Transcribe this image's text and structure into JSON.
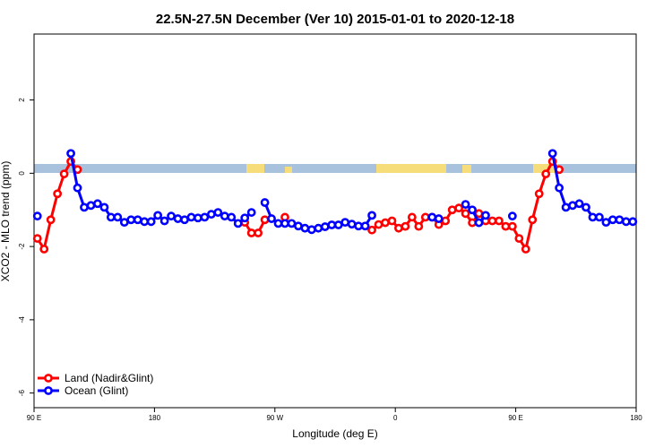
{
  "chart_data": {
    "type": "line",
    "title": "22.5N-27.5N December (Ver 10)   2015-01-01 to 2020-12-18",
    "x_label": "Longitude (deg E)",
    "y_label": "XCO2 - MLO trend (ppm)",
    "xlim": [
      90,
      540
    ],
    "ylim": [
      -6.4,
      3.8
    ],
    "xticks": [
      {
        "value": 90,
        "label": "90 E"
      },
      180,
      {
        "value": 270,
        "label": "90 W"
      },
      {
        "value": 360,
        "label": "0"
      },
      {
        "value": 450,
        "label": "90 E"
      },
      {
        "value": 540,
        "label": "180"
      }
    ],
    "yticks": [
      -6,
      -4,
      -2,
      0,
      2
    ],
    "legend": "bottom-left",
    "x": [
      92.5,
      97.5,
      102.5,
      107.5,
      112.5,
      117.5,
      122.5,
      127.5,
      132.5,
      137.5,
      142.5,
      147.5,
      152.5,
      157.5,
      162.5,
      167.5,
      172.5,
      177.5,
      182.5,
      187.5,
      192.5,
      197.5,
      202.5,
      207.5,
      212.5,
      217.5,
      222.5,
      227.5,
      232.5,
      237.5,
      242.5,
      247.5,
      252.5,
      257.5,
      262.5,
      267.5,
      272.5,
      277.5,
      282.5,
      287.5,
      292.5,
      297.5,
      302.5,
      307.5,
      312.5,
      317.5,
      322.5,
      327.5,
      332.5,
      337.5,
      342.5,
      347.5,
      352.5,
      357.5,
      362.5,
      367.5,
      372.5,
      377.5,
      382.5,
      387.5,
      392.5,
      397.5,
      402.5,
      407.5,
      412.5,
      417.5,
      422.5,
      427.5,
      432.5,
      437.5,
      442.5,
      447.5,
      452.5,
      457.5,
      462.5,
      467.5,
      472.5,
      477.5,
      482.5,
      487.5,
      492.5,
      497.5,
      502.5,
      507.5,
      512.5,
      517.5,
      522.5,
      527.5,
      532.5,
      537.5
    ],
    "series": [
      {
        "name": "Land (Nadir&Glint)",
        "color": "#ff0000",
        "values": [
          -1.78,
          -2.07,
          -1.27,
          -0.56,
          -0.02,
          0.32,
          0.1,
          null,
          null,
          null,
          null,
          null,
          null,
          null,
          null,
          null,
          null,
          null,
          null,
          null,
          null,
          null,
          null,
          null,
          null,
          null,
          null,
          null,
          null,
          null,
          null,
          -1.34,
          -1.63,
          -1.63,
          -1.27,
          null,
          null,
          -1.2,
          null,
          null,
          null,
          null,
          null,
          null,
          null,
          null,
          null,
          null,
          null,
          null,
          -1.55,
          -1.4,
          -1.35,
          -1.3,
          -1.5,
          -1.45,
          -1.2,
          -1.45,
          -1.2,
          -1.2,
          -1.4,
          -1.3,
          -1.0,
          -0.95,
          -1.1,
          -1.35,
          -1.1,
          -1.3,
          -1.3,
          -1.3,
          -1.45,
          -1.45,
          -1.78,
          -2.07,
          -1.27,
          -0.56,
          -0.02,
          0.32,
          0.1,
          null,
          null,
          null,
          null,
          null,
          null,
          null,
          null,
          null,
          null,
          null
        ]
      },
      {
        "name": "Ocean (Glint)",
        "color": "#0000ff",
        "values": [
          -1.17,
          null,
          null,
          null,
          null,
          0.54,
          -0.4,
          -0.93,
          -0.88,
          -0.83,
          -0.93,
          -1.2,
          -1.2,
          -1.34,
          -1.27,
          -1.27,
          -1.32,
          -1.32,
          -1.15,
          -1.3,
          -1.17,
          -1.24,
          -1.27,
          -1.2,
          -1.22,
          -1.2,
          -1.12,
          -1.07,
          -1.17,
          -1.2,
          -1.37,
          -1.22,
          -1.07,
          null,
          -0.8,
          -1.24,
          -1.37,
          -1.37,
          -1.37,
          -1.44,
          -1.5,
          -1.54,
          -1.5,
          -1.46,
          -1.41,
          -1.41,
          -1.34,
          -1.39,
          -1.44,
          -1.44,
          -1.15,
          null,
          null,
          null,
          null,
          null,
          null,
          null,
          null,
          -1.2,
          -1.24,
          null,
          null,
          null,
          -0.85,
          -1.0,
          -1.35,
          -1.15,
          null,
          null,
          null,
          -1.17,
          null,
          null,
          null,
          null,
          null,
          0.54,
          -0.4,
          -0.93,
          -0.88,
          -0.83,
          -0.93,
          -1.2,
          -1.2,
          -1.34,
          -1.27,
          -1.27,
          -1.32,
          -1.32
        ]
      }
    ]
  }
}
